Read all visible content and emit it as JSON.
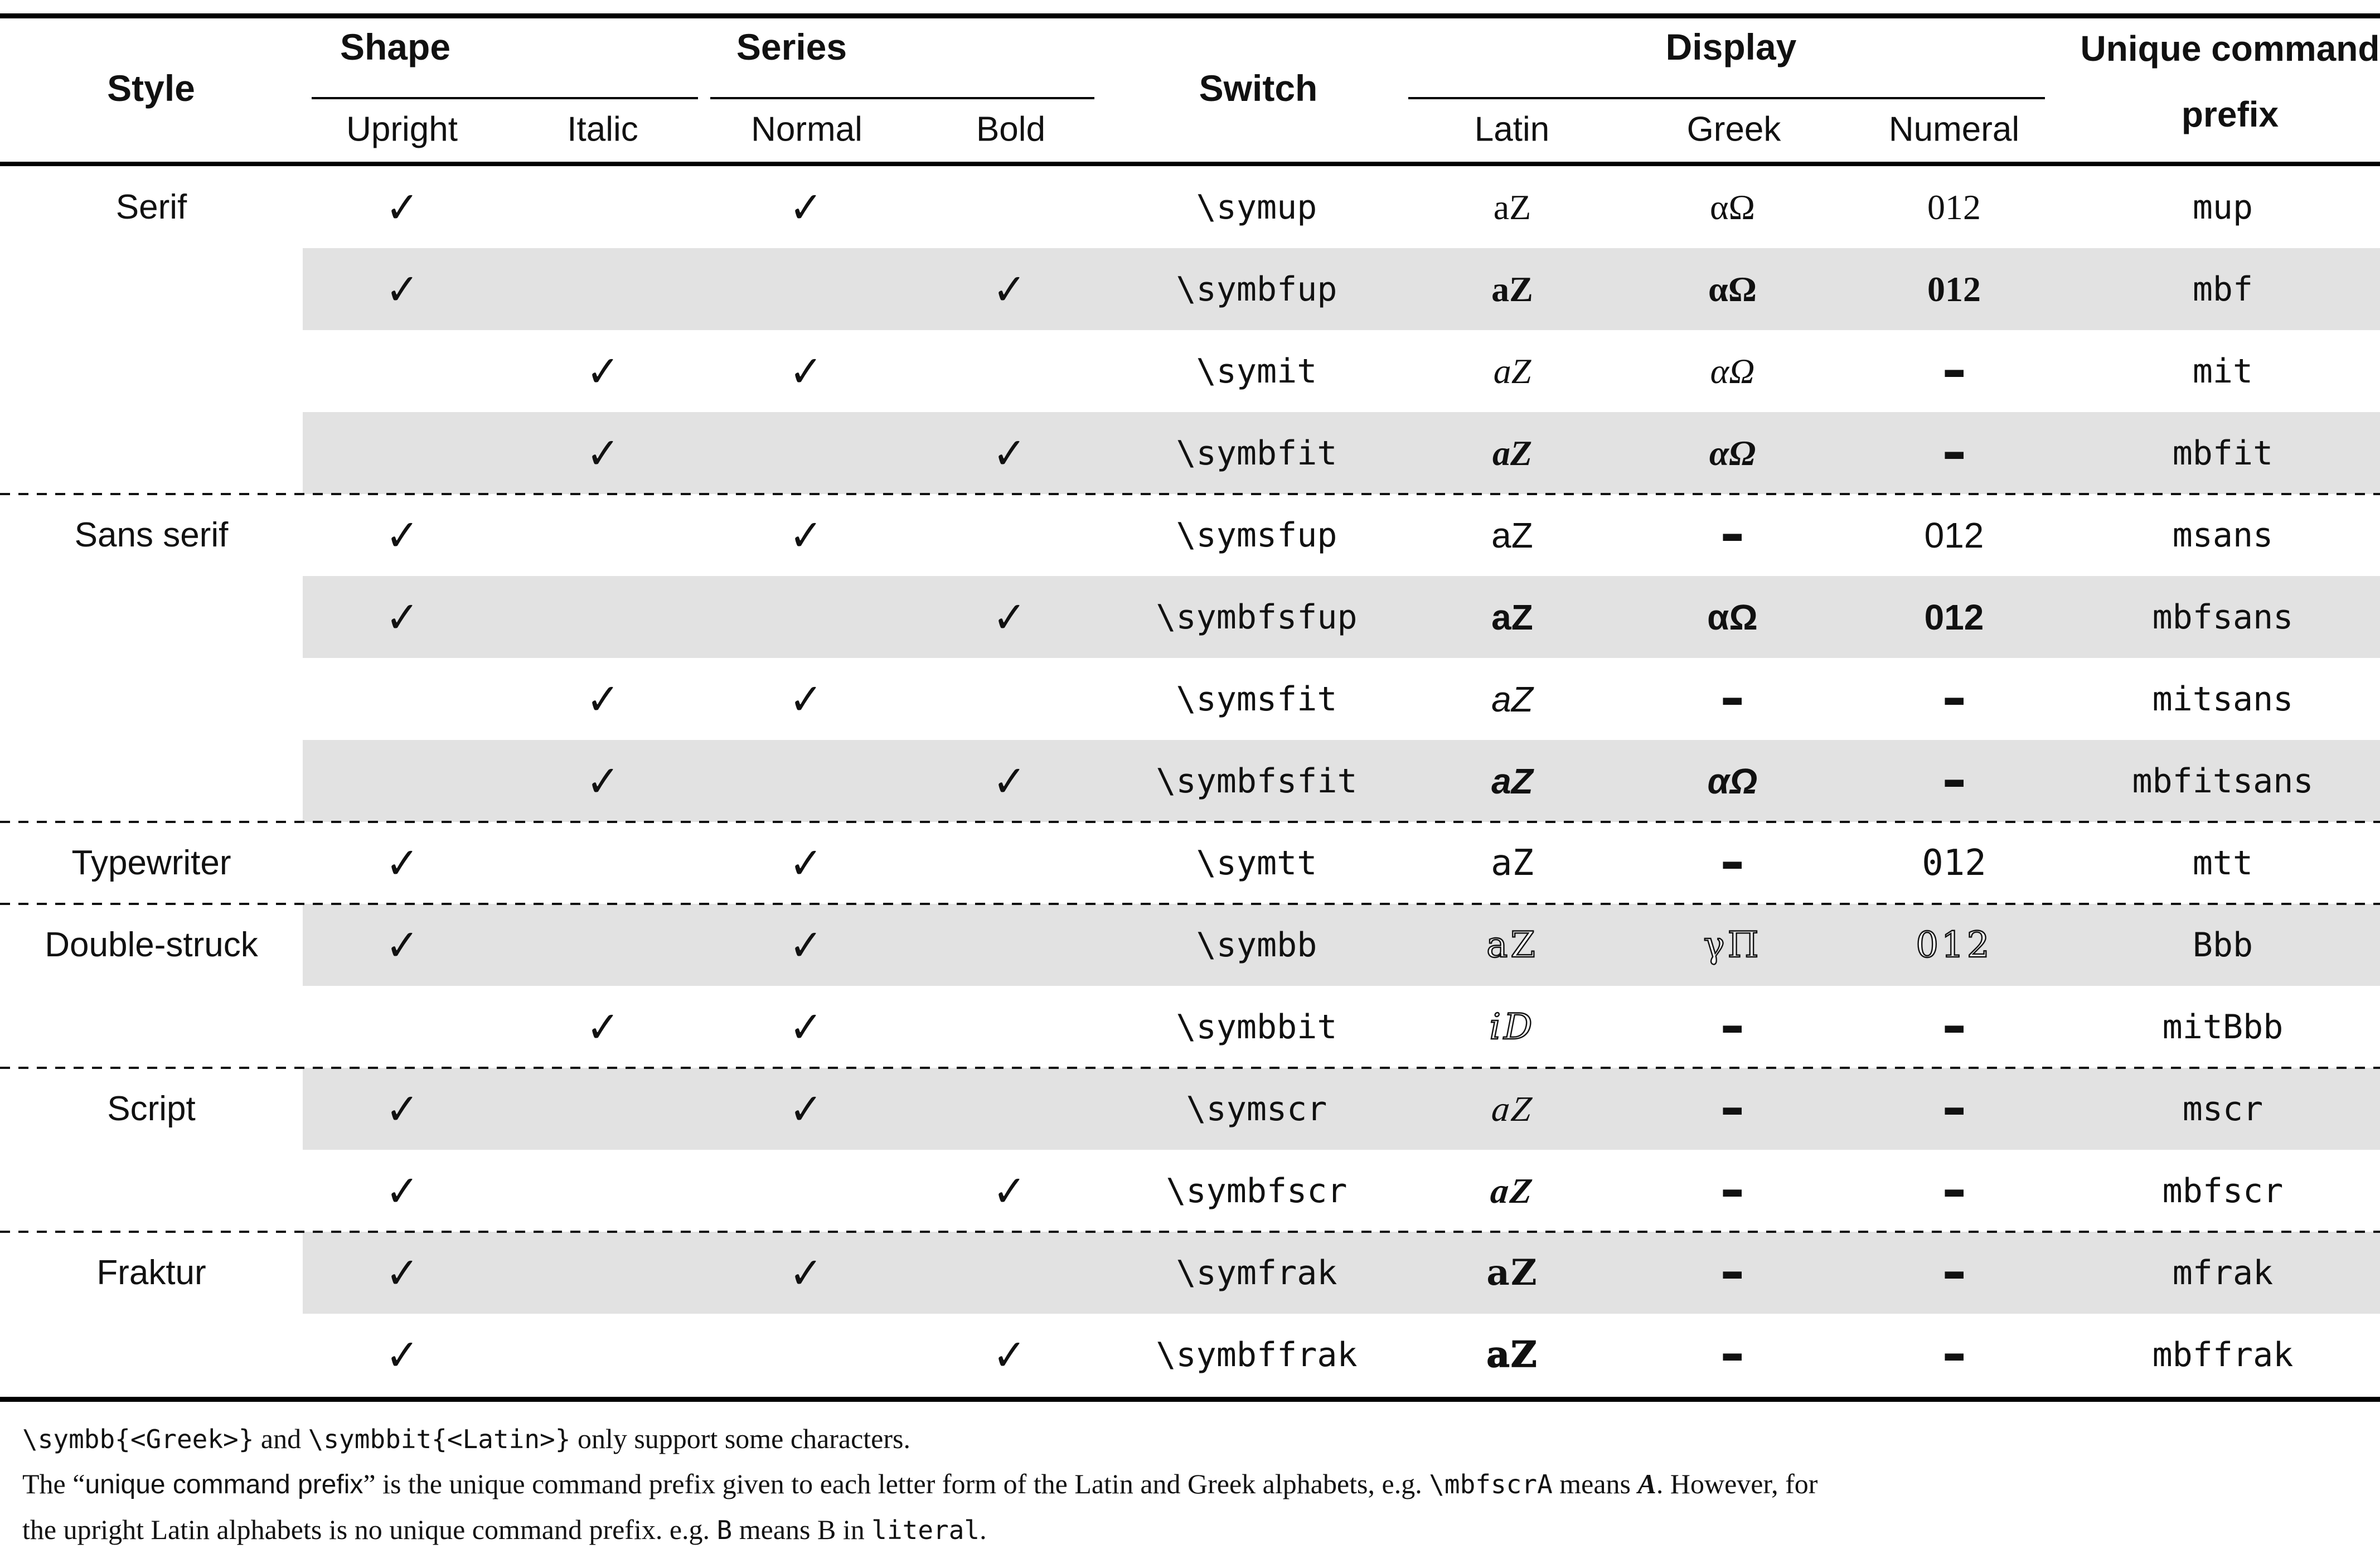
{
  "page": {
    "background": "#ffffff",
    "text_color": "#111111",
    "shaded_row_color": "#e2e2e2",
    "rule_color": "#000000"
  },
  "table": {
    "checkmark": "✓",
    "header": {
      "style": "Style",
      "shape": "Shape",
      "series": "Series",
      "switch": "Switch",
      "display": "Display",
      "prefix": "Unique command prefix",
      "sub": [
        "Upright",
        "Italic",
        "Normal",
        "Bold",
        "Latin",
        "Greek",
        "Numeral"
      ]
    },
    "rows": [
      {
        "style_label": "Serif",
        "checks": {
          "upright": true,
          "italic": false,
          "normal": true,
          "bold": false
        },
        "switch": "\\symup",
        "latin": {
          "text": "aZ",
          "style": "up"
        },
        "greek": {
          "text": "αΩ",
          "style": "up"
        },
        "numeral": {
          "text": "012",
          "style": "up"
        },
        "prefix": "mup",
        "shaded": false,
        "dashed_after": false
      },
      {
        "style_label": "",
        "checks": {
          "upright": true,
          "italic": false,
          "normal": false,
          "bold": true
        },
        "switch": "\\symbfup",
        "latin": {
          "text": "aZ",
          "style": "bfup"
        },
        "greek": {
          "text": "αΩ",
          "style": "bfup"
        },
        "numeral": {
          "text": "012",
          "style": "bfup"
        },
        "prefix": "mbf",
        "shaded": true,
        "dashed_after": false
      },
      {
        "style_label": "",
        "checks": {
          "upright": false,
          "italic": true,
          "normal": true,
          "bold": false
        },
        "switch": "\\symit",
        "latin": {
          "text": "aZ",
          "style": "it"
        },
        "greek": {
          "text": "αΩ",
          "style": "it"
        },
        "numeral": {
          "text": "-",
          "style": "dash"
        },
        "prefix": "mit",
        "shaded": false,
        "dashed_after": false
      },
      {
        "style_label": "",
        "checks": {
          "upright": false,
          "italic": true,
          "normal": false,
          "bold": true
        },
        "switch": "\\symbfit",
        "latin": {
          "text": "aZ",
          "style": "bfit"
        },
        "greek": {
          "text": "αΩ",
          "style": "bfit"
        },
        "numeral": {
          "text": "-",
          "style": "dash"
        },
        "prefix": "mbfit",
        "shaded": true,
        "dashed_after": true
      },
      {
        "style_label": "Sans serif",
        "checks": {
          "upright": true,
          "italic": false,
          "normal": true,
          "bold": false
        },
        "switch": "\\symsfup",
        "latin": {
          "text": "aZ",
          "style": "sfup"
        },
        "greek": {
          "text": "-",
          "style": "dash"
        },
        "numeral": {
          "text": "012",
          "style": "sfup"
        },
        "prefix": "msans",
        "shaded": false,
        "dashed_after": false
      },
      {
        "style_label": "",
        "checks": {
          "upright": true,
          "italic": false,
          "normal": false,
          "bold": true
        },
        "switch": "\\symbfsfup",
        "latin": {
          "text": "aZ",
          "style": "bfsfup"
        },
        "greek": {
          "text": "αΩ",
          "style": "bfsfup"
        },
        "numeral": {
          "text": "012",
          "style": "bfsfup"
        },
        "prefix": "mbfsans",
        "shaded": true,
        "dashed_after": false
      },
      {
        "style_label": "",
        "checks": {
          "upright": false,
          "italic": true,
          "normal": true,
          "bold": false
        },
        "switch": "\\symsfit",
        "latin": {
          "text": "aZ",
          "style": "sfit"
        },
        "greek": {
          "text": "-",
          "style": "dash"
        },
        "numeral": {
          "text": "-",
          "style": "dash"
        },
        "prefix": "mitsans",
        "shaded": false,
        "dashed_after": false
      },
      {
        "style_label": "",
        "checks": {
          "upright": false,
          "italic": true,
          "normal": false,
          "bold": true
        },
        "switch": "\\symbfsfit",
        "latin": {
          "text": "aZ",
          "style": "bfsfit"
        },
        "greek": {
          "text": "αΩ",
          "style": "bfsfit"
        },
        "numeral": {
          "text": "-",
          "style": "dash"
        },
        "prefix": "mbfitsans",
        "shaded": true,
        "dashed_after": true
      },
      {
        "style_label": "Typewriter",
        "checks": {
          "upright": true,
          "italic": false,
          "normal": true,
          "bold": false
        },
        "switch": "\\symtt",
        "latin": {
          "text": "aZ",
          "style": "tt"
        },
        "greek": {
          "text": "-",
          "style": "dash"
        },
        "numeral": {
          "text": "012",
          "style": "tt"
        },
        "prefix": "mtt",
        "shaded": false,
        "dashed_after": true
      },
      {
        "style_label": "Double-struck",
        "checks": {
          "upright": true,
          "italic": false,
          "normal": true,
          "bold": false
        },
        "switch": "\\symbb",
        "latin": {
          "text": "aZ",
          "unicode": "𝕒ℤ",
          "style": "bb"
        },
        "greek": {
          "text": "γΠ",
          "unicode": "ℽℿ",
          "style": "bb"
        },
        "numeral": {
          "text": "012",
          "unicode": "𝟘𝟙𝟚",
          "style": "bb"
        },
        "prefix": "Bbb",
        "shaded": true,
        "dashed_after": false
      },
      {
        "style_label": "",
        "checks": {
          "upright": false,
          "italic": true,
          "normal": true,
          "bold": false
        },
        "switch": "\\symbbit",
        "latin": {
          "text": "iD",
          "unicode": "ⅈⅅ",
          "style": "bbit"
        },
        "greek": {
          "text": "-",
          "style": "dash"
        },
        "numeral": {
          "text": "-",
          "style": "dash"
        },
        "prefix": "mitBbb",
        "shaded": false,
        "dashed_after": true
      },
      {
        "style_label": "Script",
        "checks": {
          "upright": true,
          "italic": false,
          "normal": true,
          "bold": false
        },
        "switch": "\\symscr",
        "latin": {
          "text": "aZ",
          "unicode": "𝒶𝒵",
          "style": "scr"
        },
        "greek": {
          "text": "-",
          "style": "dash"
        },
        "numeral": {
          "text": "-",
          "style": "dash"
        },
        "prefix": "mscr",
        "shaded": true,
        "dashed_after": false
      },
      {
        "style_label": "",
        "checks": {
          "upright": true,
          "italic": false,
          "normal": false,
          "bold": true
        },
        "switch": "\\symbfscr",
        "latin": {
          "text": "aZ",
          "unicode": "𝓪𝓩",
          "style": "bfscr"
        },
        "greek": {
          "text": "-",
          "style": "dash"
        },
        "numeral": {
          "text": "-",
          "style": "dash"
        },
        "prefix": "mbfscr",
        "shaded": false,
        "dashed_after": true
      },
      {
        "style_label": "Fraktur",
        "checks": {
          "upright": true,
          "italic": false,
          "normal": true,
          "bold": false
        },
        "switch": "\\symfrak",
        "latin": {
          "text": "aZ",
          "unicode": "𝔞ℨ",
          "style": "frak"
        },
        "greek": {
          "text": "-",
          "style": "dash"
        },
        "numeral": {
          "text": "-",
          "style": "dash"
        },
        "prefix": "mfrak",
        "shaded": true,
        "dashed_after": false
      },
      {
        "style_label": "",
        "checks": {
          "upright": true,
          "italic": false,
          "normal": false,
          "bold": true
        },
        "switch": "\\symbffrak",
        "latin": {
          "text": "aZ",
          "unicode": "𝖆𝖅",
          "style": "bffrak"
        },
        "greek": {
          "text": "-",
          "style": "dash"
        },
        "numeral": {
          "text": "-",
          "style": "dash"
        },
        "prefix": "mbffrak",
        "shaded": false,
        "dashed_after": false
      }
    ],
    "footnotes": [
      {
        "segments": [
          {
            "text": "\\symbb{<Greek>}",
            "style": "tt"
          },
          {
            "text": " and ",
            "style": "rm"
          },
          {
            "text": "\\symbbit{<Latin>}",
            "style": "tt"
          },
          {
            "text": " only support some characters.",
            "style": "rm"
          }
        ]
      },
      {
        "segments": [
          {
            "text": "The “",
            "style": "rm"
          },
          {
            "text": "unique command prefix",
            "style": "sans"
          },
          {
            "text": "” is the unique command prefix given to each letter form of the Latin and Greek alphabets, e.g. ",
            "style": "rm"
          },
          {
            "text": "\\mbfscrA",
            "style": "tt"
          },
          {
            "text": " means ",
            "style": "rm"
          },
          {
            "text": "A",
            "unicode": "𝓐",
            "style": "bfscr"
          },
          {
            "text": ". However, for",
            "style": "rm"
          }
        ]
      },
      {
        "segments": [
          {
            "text": "the upright Latin alphabets is no unique command prefix. e.g. ",
            "style": "rm"
          },
          {
            "text": "B",
            "style": "tt"
          },
          {
            "text": " means B in ",
            "style": "rm"
          },
          {
            "text": "literal",
            "style": "tt"
          },
          {
            "text": ".",
            "style": "rm"
          }
        ]
      }
    ]
  }
}
